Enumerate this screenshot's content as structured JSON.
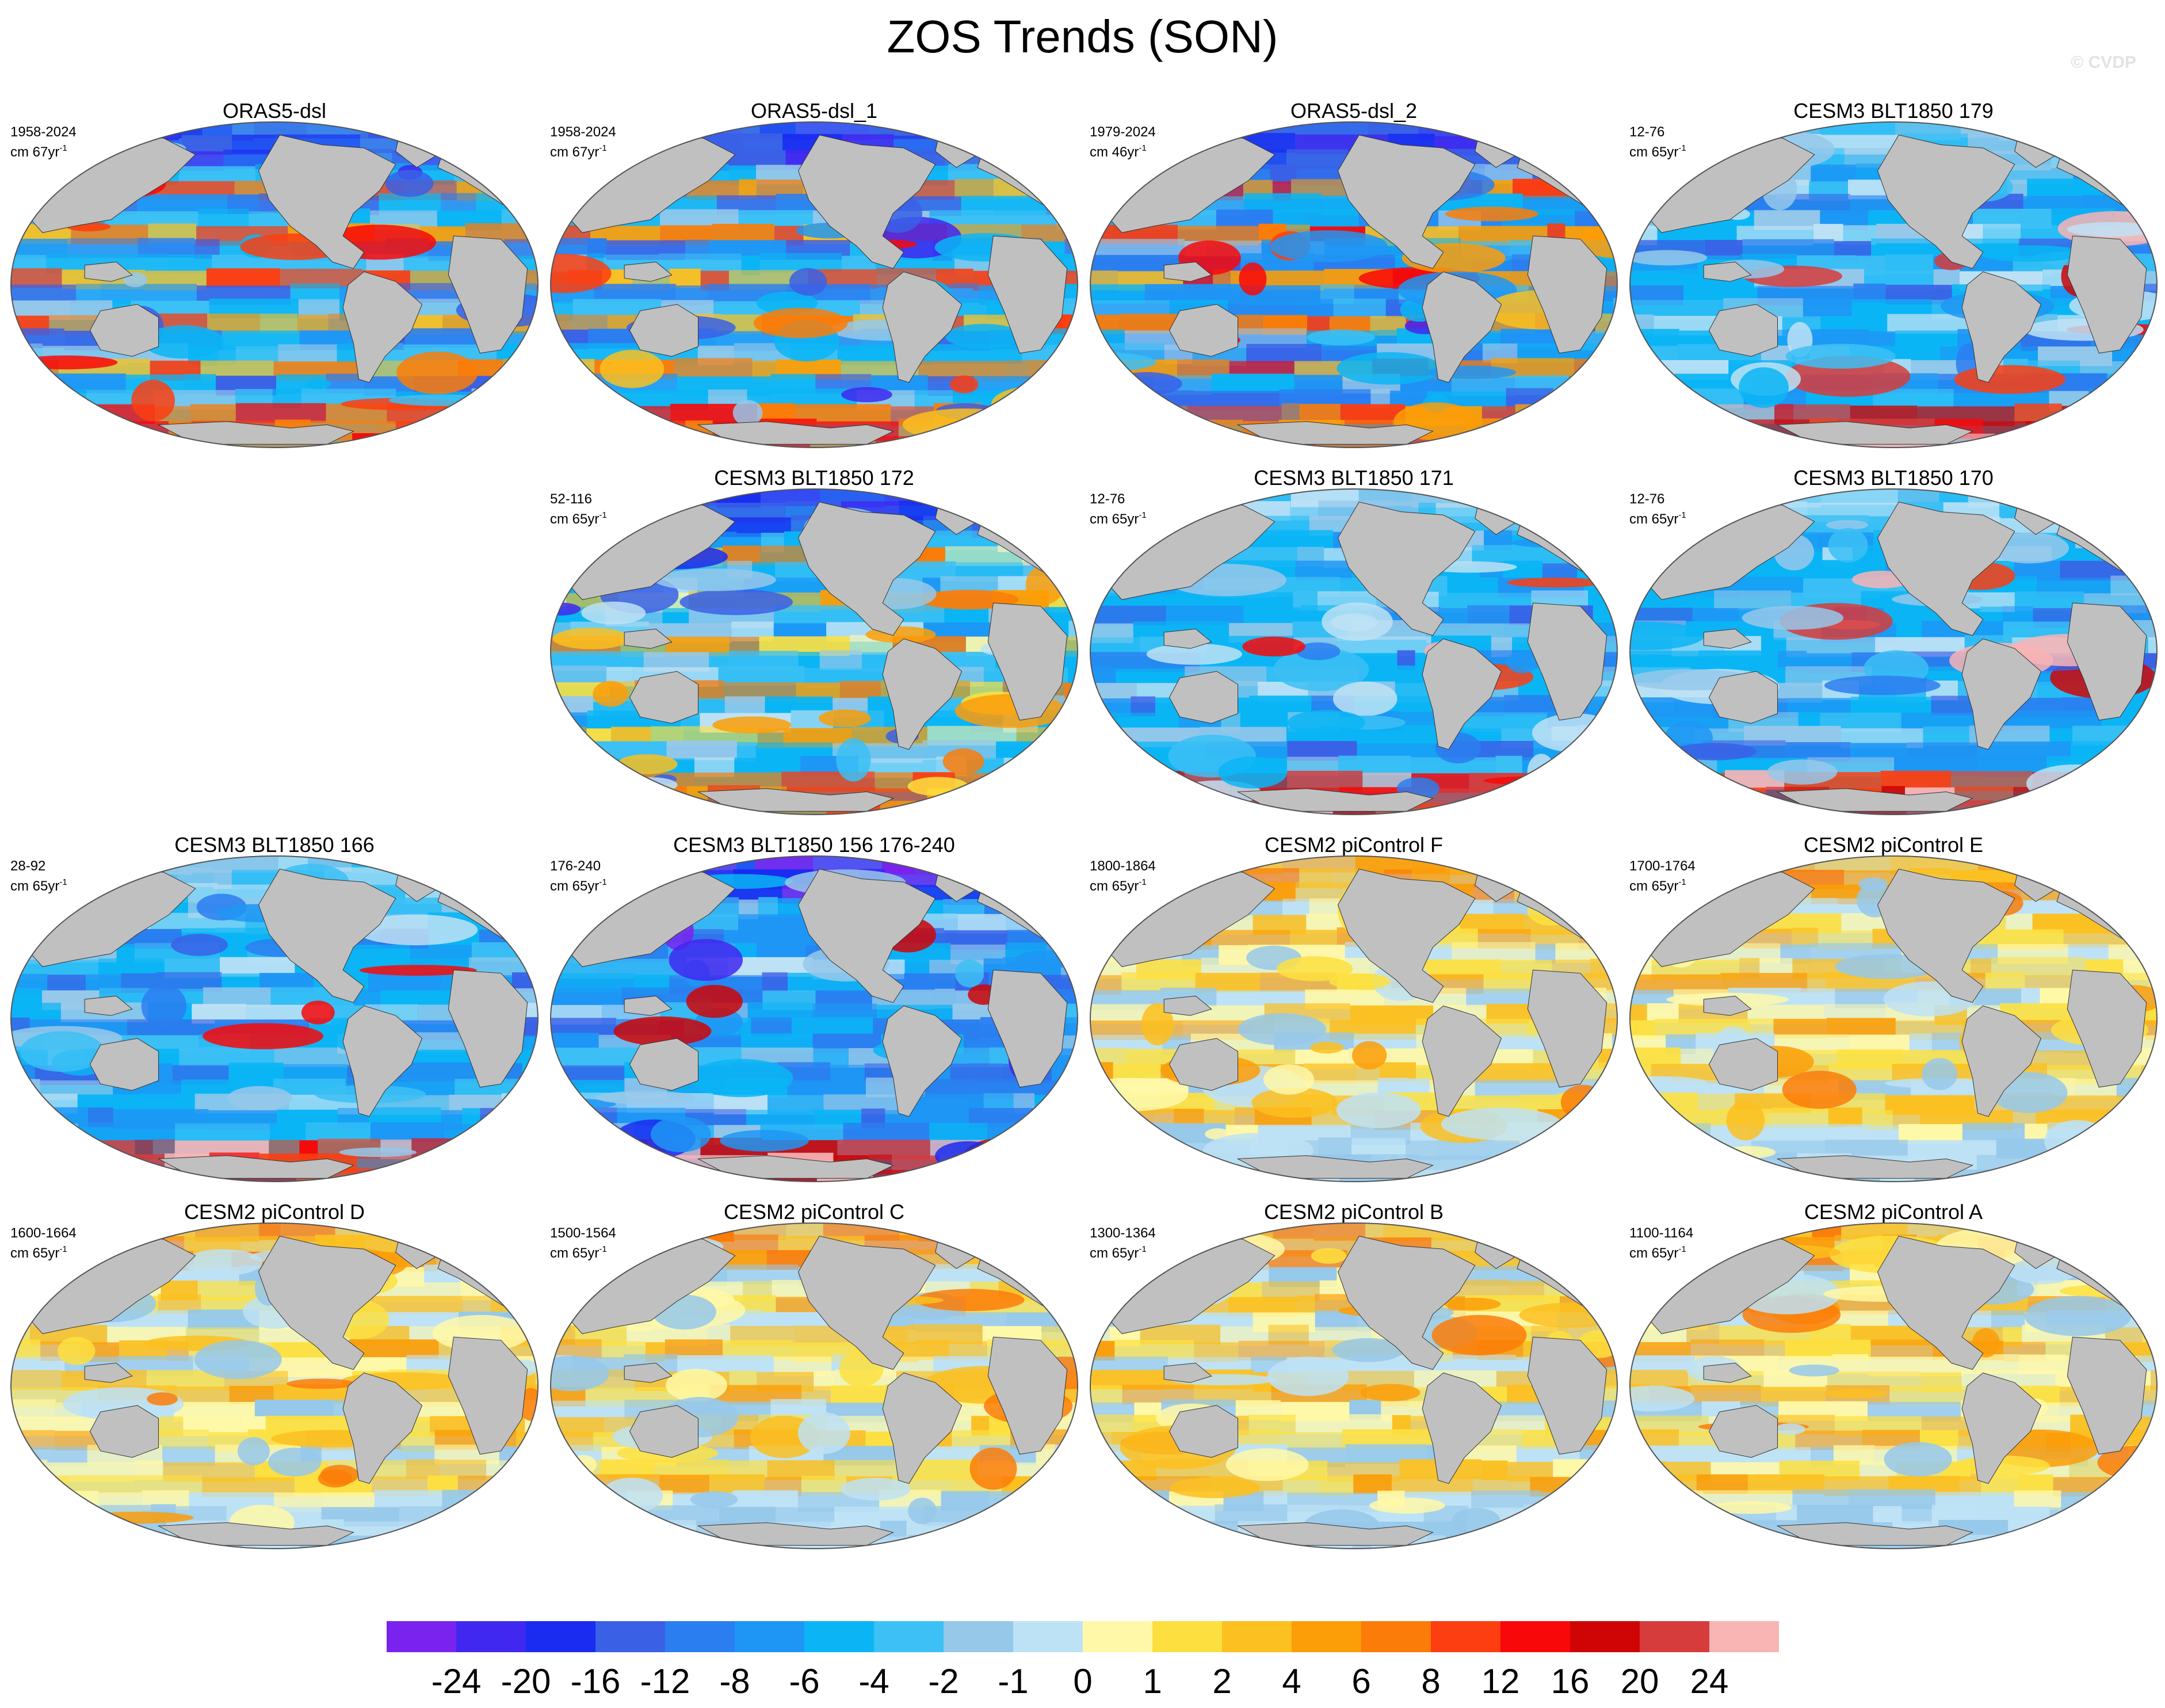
{
  "title": "ZOS Trends (SON)",
  "credit": "© CVDP",
  "unit_prefix": "cm 65yr",
  "unit_exponent": "-1",
  "colors": {
    "land": "#c0c0c0",
    "background": "#ffffff",
    "outline": "#555555",
    "colorbar": [
      "#7a22ee",
      "#4028f0",
      "#1a2cf0",
      "#3a60e6",
      "#2b7ef0",
      "#1e96f5",
      "#0bb5f5",
      "#3cc0f5",
      "#96c8ea",
      "#bee2f5",
      "#fff8a8",
      "#fde040",
      "#fcc020",
      "#fb9e08",
      "#fb7c08",
      "#fc3e10",
      "#f80808",
      "#cf0505",
      "#d63c3c",
      "#f9b4b4"
    ]
  },
  "colorbar": {
    "labels": [
      "-24",
      "-20",
      "-16",
      "-12",
      "-8",
      "-6",
      "-4",
      "-2",
      "-1",
      "0",
      "1",
      "2",
      "4",
      "6",
      "8",
      "12",
      "16",
      "20",
      "24"
    ]
  },
  "panels": [
    {
      "title": "ORAS5-dsl",
      "years": "1958-2024",
      "unit": "cm 67yr",
      "cmap": "obs"
    },
    {
      "title": "ORAS5-dsl_1",
      "years": "1958-2024",
      "unit": "cm 67yr",
      "cmap": "obs"
    },
    {
      "title": "ORAS5-dsl_2",
      "years": "1979-2024",
      "unit": "cm 46yr",
      "cmap": "obs2"
    },
    {
      "title": "CESM3 BLT1850 179",
      "years": "12-76",
      "unit": "cm 65yr",
      "cmap": "cesm3"
    },
    {
      "title": "CESM3 BLT1850 172",
      "years": "52-116",
      "unit": "cm 65yr",
      "cmap": "cesm3b"
    },
    {
      "title": "CESM3 BLT1850 171",
      "years": "12-76",
      "unit": "cm 65yr",
      "cmap": "cesm3"
    },
    {
      "title": "CESM3 BLT1850 170",
      "years": "12-76",
      "unit": "cm 65yr",
      "cmap": "cesm3"
    },
    {
      "title": "CESM3 BLT1850 166",
      "years": "28-92",
      "unit": "cm 65yr",
      "cmap": "cesm3"
    },
    {
      "title": "CESM3 BLT1850 156 176-240",
      "years": "176-240",
      "unit": "cm 65yr",
      "cmap": "cesm3c"
    },
    {
      "title": "CESM2 piControl F",
      "years": "1800-1864",
      "unit": "cm 65yr",
      "cmap": "cesm2"
    },
    {
      "title": "CESM2 piControl E",
      "years": "1700-1764",
      "unit": "cm 65yr",
      "cmap": "cesm2"
    },
    {
      "title": "CESM2 piControl D",
      "years": "1600-1664",
      "unit": "cm 65yr",
      "cmap": "cesm2"
    },
    {
      "title": "CESM2 piControl C",
      "years": "1500-1564",
      "unit": "cm 65yr",
      "cmap": "cesm2"
    },
    {
      "title": "CESM2 piControl B",
      "years": "1300-1364",
      "unit": "cm 65yr",
      "cmap": "cesm2"
    },
    {
      "title": "CESM2 piControl A",
      "years": "1100-1164",
      "unit": "cm 65yr",
      "cmap": "cesm2"
    }
  ]
}
